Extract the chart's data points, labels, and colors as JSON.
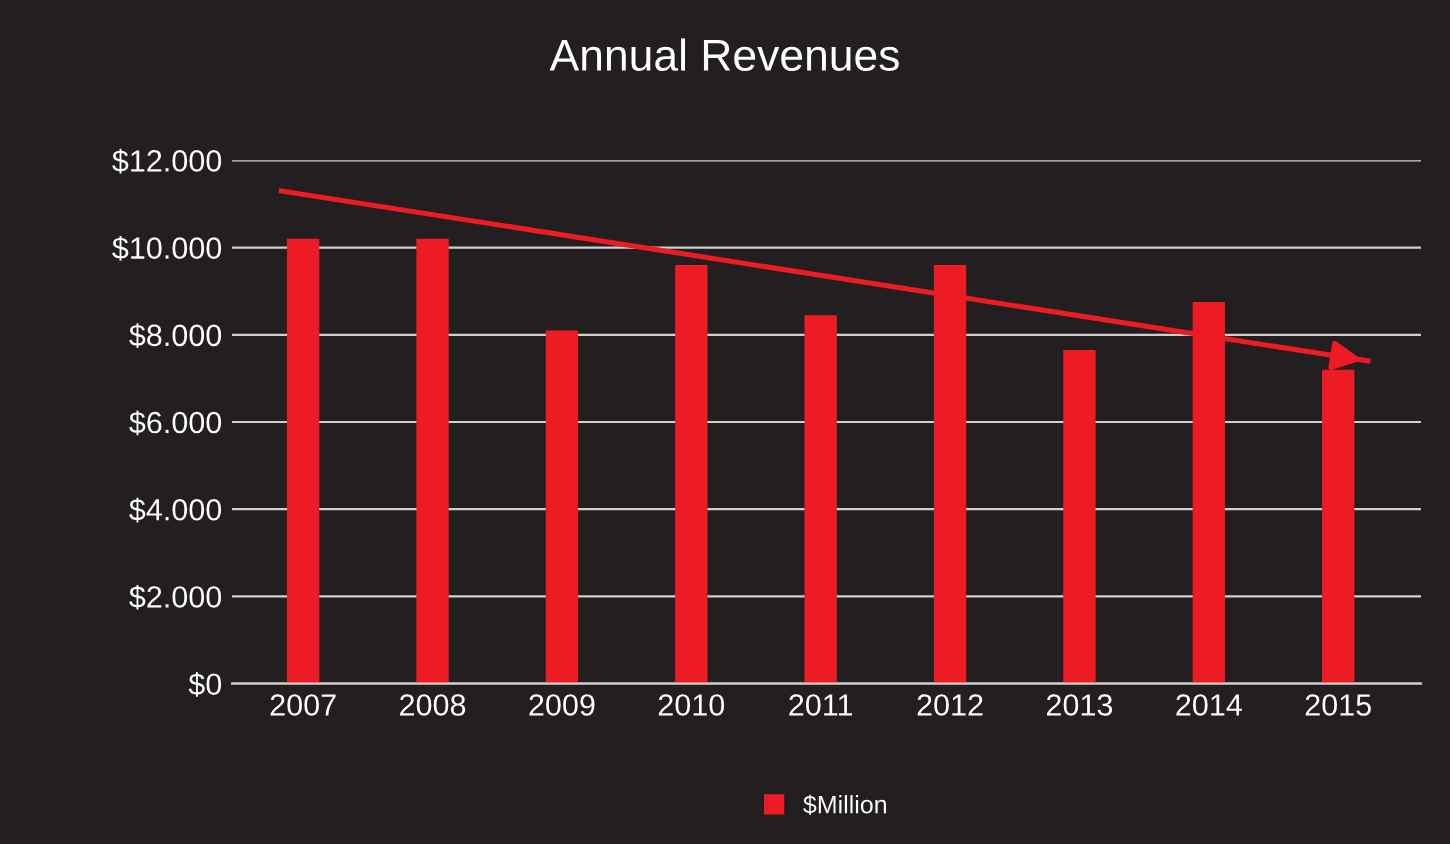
{
  "chart_data": {
    "type": "bar",
    "title": "Annual Revenues",
    "x": [
      2007,
      2008,
      2009,
      2010,
      2011,
      2012,
      2013,
      2014,
      2015
    ],
    "series": [
      {
        "name": "$Million",
        "color": "#ed1c24",
        "values": [
          10200,
          10200,
          8100,
          9600,
          8450,
          9600,
          7650,
          8750,
          7200
        ]
      },
      {
        "type": "line",
        "color": "#ed1c24",
        "x": [
          2006.83,
          2015.23
        ],
        "values": [
          11300,
          7400
        ]
      }
    ],
    "xlim": [
      2006.45,
      2015.64
    ],
    "xticks": [
      2007,
      2008,
      2009,
      2010,
      2011,
      2012,
      2013,
      2014,
      2015
    ],
    "ylim": [
      0,
      12000
    ],
    "yticks": [
      {
        "value": 0,
        "label": "$0"
      },
      {
        "value": 2000,
        "label": "$2.000"
      },
      {
        "value": 4000,
        "label": "$4.000"
      },
      {
        "value": 6000,
        "label": "$6.000"
      },
      {
        "value": 8000,
        "label": "$8.000"
      },
      {
        "value": 10000,
        "label": "$10.000"
      },
      {
        "value": 12000,
        "label": "$12.000"
      }
    ],
    "grid": "y",
    "legend": "bottom"
  }
}
